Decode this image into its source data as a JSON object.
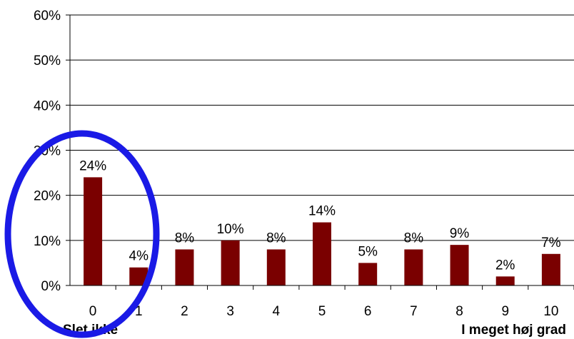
{
  "chart_data": {
    "type": "bar",
    "categories": [
      "0",
      "1",
      "2",
      "3",
      "4",
      "5",
      "6",
      "7",
      "8",
      "9",
      "10"
    ],
    "values": [
      24,
      4,
      8,
      10,
      8,
      14,
      5,
      8,
      9,
      2,
      7
    ],
    "data_labels": [
      "24%",
      "4%",
      "8%",
      "10%",
      "8%",
      "14%",
      "5%",
      "8%",
      "9%",
      "2%",
      "7%"
    ],
    "ylim": [
      0,
      60
    ],
    "y_ticks": [
      "0%",
      "10%",
      "20%",
      "30%",
      "40%",
      "50%",
      "60%"
    ],
    "x_end_labels": {
      "left": "Slet ikke",
      "right": "I meget høj grad"
    },
    "grid": true,
    "colors": {
      "bar": "#7a0000",
      "highlight_ellipse": "#1a1ae6"
    }
  }
}
